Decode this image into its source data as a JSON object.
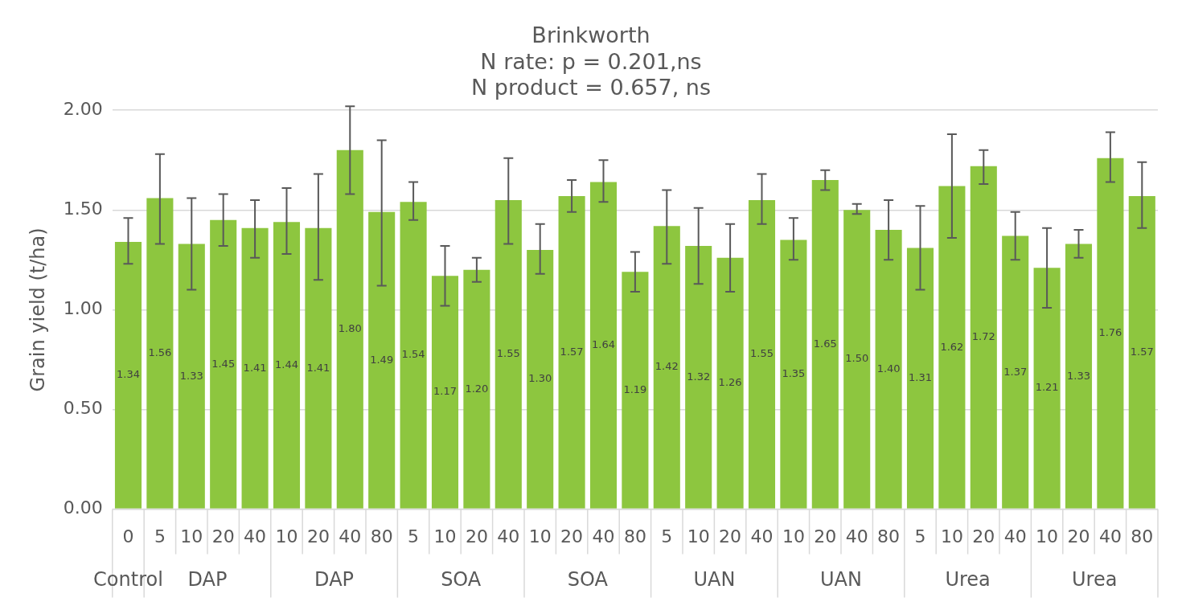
{
  "chart_data": {
    "type": "bar",
    "title": "Brinkworth",
    "subtitle": "N rate: p = 0.201,ns\nN product = 0.657, ns",
    "ylabel": "Grain yield (t/ha)",
    "categories": [
      "0",
      "5",
      "10",
      "20",
      "40",
      "10",
      "20",
      "40",
      "80",
      "5",
      "10",
      "20",
      "40",
      "10",
      "20",
      "40",
      "80",
      "5",
      "10",
      "20",
      "40",
      "10",
      "20",
      "40",
      "80",
      "5",
      "10",
      "20",
      "40",
      "10",
      "20",
      "40",
      "80"
    ],
    "annotations": [
      "Control",
      "DAP",
      "DAP",
      "SOA",
      "SOA",
      "UAN",
      "UAN",
      "Urea",
      "Urea"
    ],
    "color": "#8dc63f",
    "values": [
      1.34,
      1.56,
      1.33,
      1.45,
      1.41,
      1.44,
      1.41,
      1.8,
      1.49,
      1.54,
      1.17,
      1.2,
      1.55,
      1.3,
      1.57,
      1.64,
      1.19,
      1.42,
      1.32,
      1.26,
      1.55,
      1.35,
      1.65,
      1.5,
      1.4,
      1.31,
      1.62,
      1.72,
      1.37,
      1.21,
      1.33,
      1.76,
      1.57
    ],
    "errors": [
      [
        1.23,
        1.46
      ],
      [
        1.33,
        1.78
      ],
      [
        1.1,
        1.56
      ],
      [
        1.32,
        1.58
      ],
      [
        1.26,
        1.55
      ],
      [
        1.28,
        1.61
      ],
      [
        1.15,
        1.68
      ],
      [
        1.58,
        2.02
      ],
      [
        1.12,
        1.85
      ],
      [
        1.45,
        1.64
      ],
      [
        1.02,
        1.32
      ],
      [
        1.14,
        1.26
      ],
      [
        1.33,
        1.76
      ],
      [
        1.18,
        1.43
      ],
      [
        1.49,
        1.65
      ],
      [
        1.54,
        1.75
      ],
      [
        1.09,
        1.29
      ],
      [
        1.23,
        1.6
      ],
      [
        1.13,
        1.51
      ],
      [
        1.09,
        1.43
      ],
      [
        1.43,
        1.68
      ],
      [
        1.25,
        1.46
      ],
      [
        1.6,
        1.7
      ],
      [
        1.48,
        1.53
      ],
      [
        1.25,
        1.55
      ],
      [
        1.1,
        1.52
      ],
      [
        1.36,
        1.88
      ],
      [
        1.63,
        1.8
      ],
      [
        1.25,
        1.49
      ],
      [
        1.01,
        1.41
      ],
      [
        1.26,
        1.4
      ],
      [
        1.64,
        1.89
      ],
      [
        1.41,
        1.74
      ]
    ],
    "ylim": [
      0,
      2
    ],
    "yticks": [
      {
        "value": 0,
        "label": "0.00"
      },
      {
        "value": 0.5,
        "label": "0.50"
      },
      {
        "value": 1,
        "label": "1.00"
      },
      {
        "value": 1.5,
        "label": "1.50"
      },
      {
        "value": 2,
        "label": "2.00"
      }
    ],
    "value_labels": [
      "1.34",
      "1.56",
      "1.33",
      "1.45",
      "1.41",
      "1.44",
      "1.41",
      "1.80",
      "1.49",
      "1.54",
      "1.17",
      "1.20",
      "1.55",
      "1.30",
      "1.57",
      "1.64",
      "1.19",
      "1.42",
      "1.32",
      "1.26",
      "1.55",
      "1.35",
      "1.65",
      "1.50",
      "1.40",
      "1.31",
      "1.62",
      "1.72",
      "1.37",
      "1.21",
      "1.33",
      "1.76",
      "1.57"
    ],
    "grid": "y",
    "legend": false
  }
}
